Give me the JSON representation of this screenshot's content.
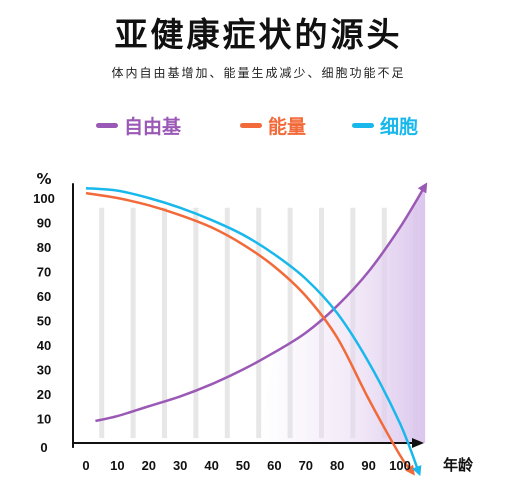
{
  "title": "亚健康症状的源头",
  "subtitle": "体内自由基增加、能量生成减少、细胞功能不足",
  "chart_data": {
    "type": "line",
    "title": "亚健康症状的源头",
    "subtitle": "体内自由基增加、能量生成减少、细胞功能不足",
    "xlabel": "年龄",
    "ylabel": "%",
    "x_ticks": [
      "0",
      "10",
      "20",
      "30",
      "40",
      "50",
      "60",
      "70",
      "80",
      "90",
      "100"
    ],
    "y_ticks": [
      "0",
      "10",
      "20",
      "30",
      "40",
      "50",
      "60",
      "70",
      "80",
      "90",
      "100"
    ],
    "xlim": [
      0,
      105
    ],
    "ylim": [
      0,
      110
    ],
    "grid": "vertical",
    "legend": "top",
    "series": [
      {
        "name": "自由基",
        "color": "#9b59b6",
        "x": [
          3,
          10,
          20,
          30,
          40,
          50,
          60,
          70,
          80,
          90,
          100,
          108
        ],
        "y": [
          9,
          11,
          15,
          19,
          24,
          30,
          37,
          45,
          56,
          70,
          88,
          105
        ]
      },
      {
        "name": "能量",
        "color": "#f26a3a",
        "x": [
          0,
          10,
          20,
          30,
          40,
          50,
          60,
          70,
          80,
          90,
          100,
          104
        ],
        "y": [
          102,
          100,
          97,
          93,
          88,
          81,
          72,
          60,
          43,
          18,
          -5,
          -12
        ]
      },
      {
        "name": "细胞",
        "color": "#19b8ec",
        "x": [
          0,
          10,
          20,
          30,
          40,
          50,
          60,
          70,
          80,
          90,
          100,
          106
        ],
        "y": [
          104,
          103,
          100,
          96,
          91,
          85,
          77,
          67,
          53,
          33,
          8,
          -12
        ]
      }
    ]
  }
}
